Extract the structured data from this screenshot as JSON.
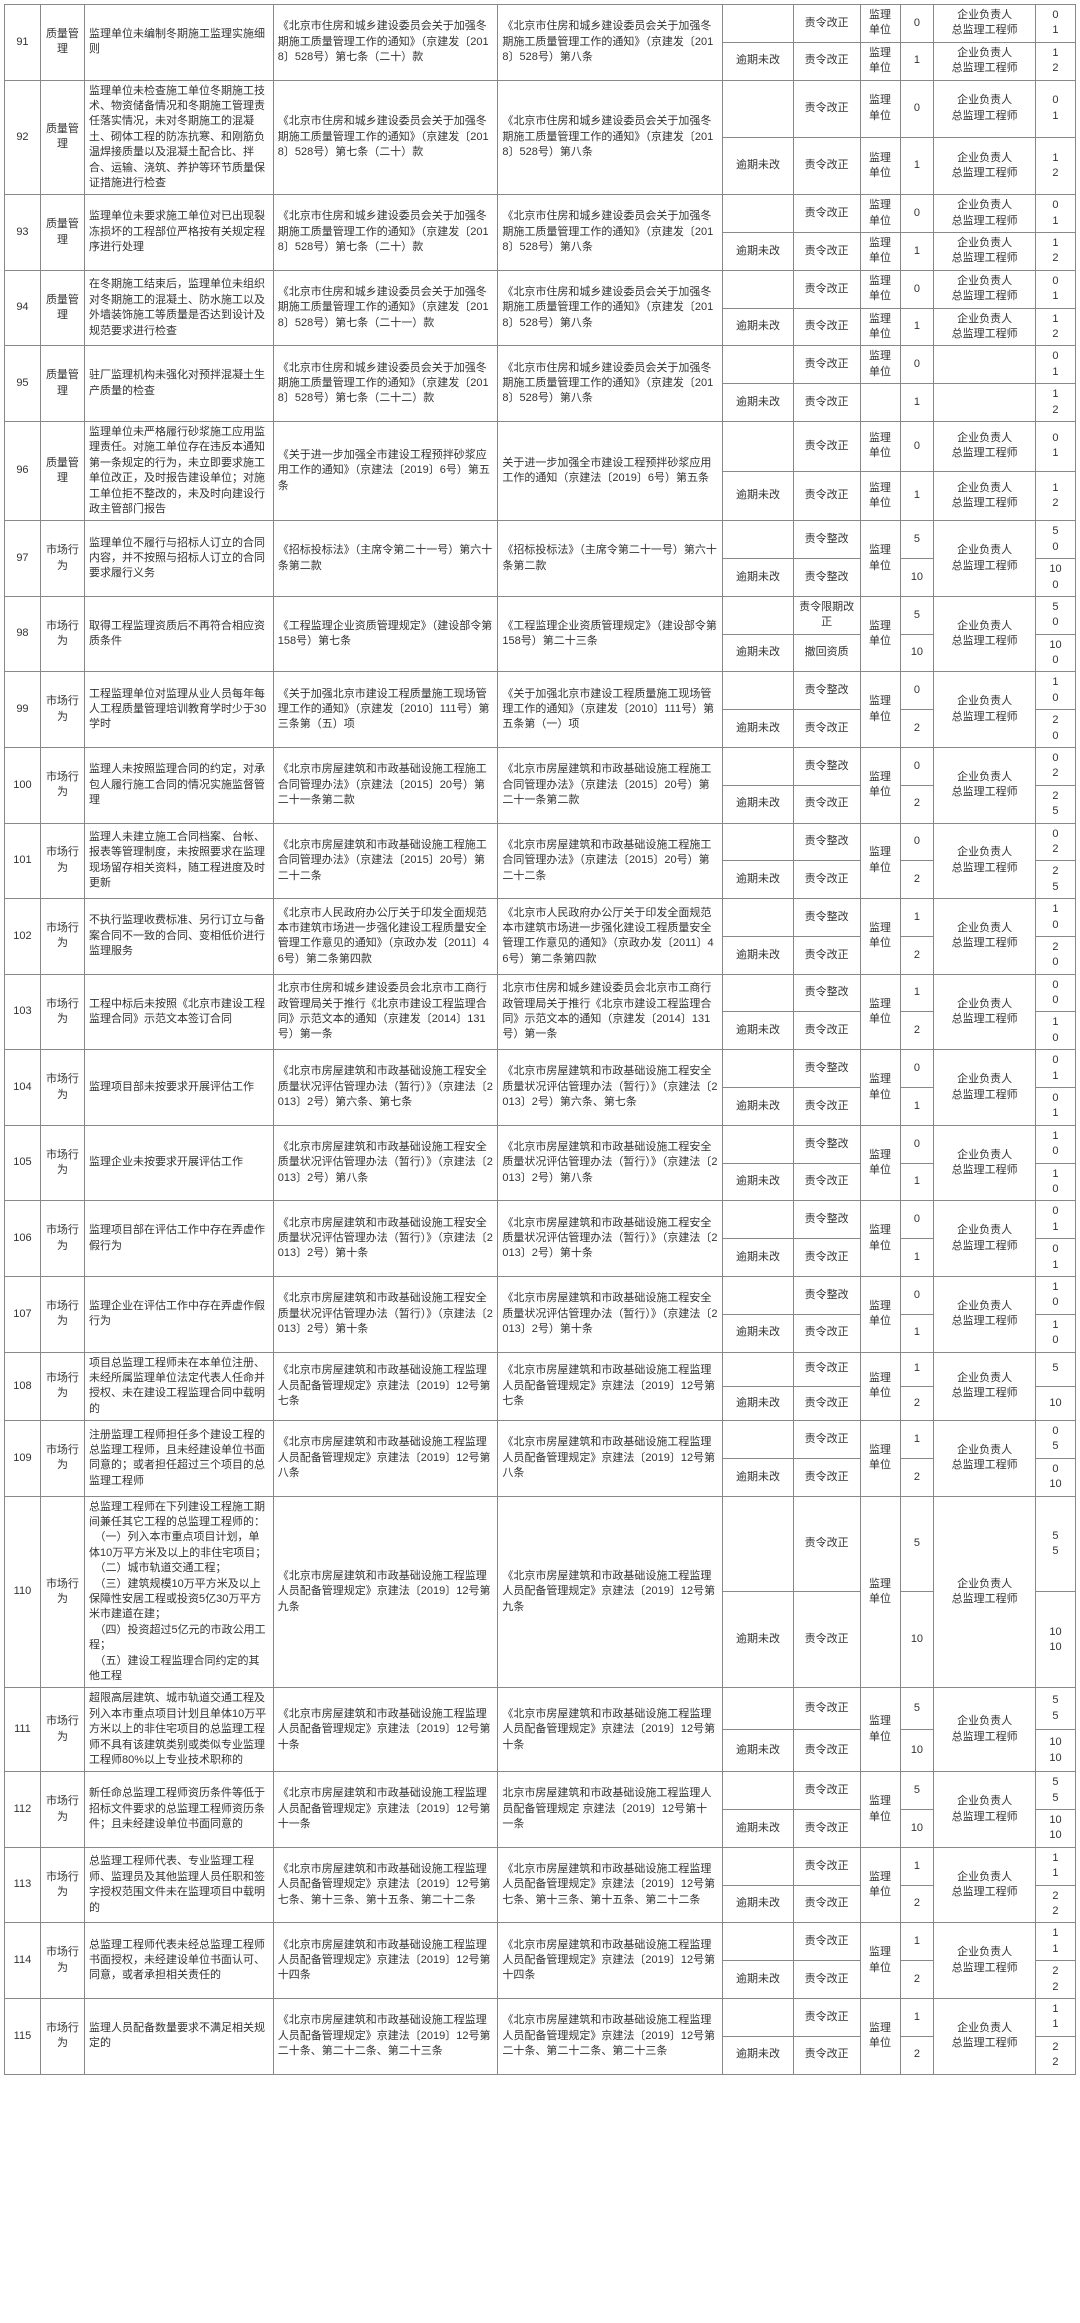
{
  "table": {
    "border_color": "#888888",
    "font_size": 11,
    "rows": [
      {
        "idx": "91",
        "cat": "质量管理",
        "desc": "监理单位未编制冬期施工监理实施细则",
        "reg1": "《北京市住房和城乡建设委员会关于加强冬期施工质量管理工作的通知》（京建发〔2018〕528号）第七条（二十）款",
        "reg2": "《北京市住房和城乡建设委员会关于加强冬期施工质量管理工作的通知》（京建发〔2018〕528号）第八条",
        "sub": [
          {
            "stat": "",
            "act": "责令改正",
            "unit": "监理单位",
            "pts": "0",
            "resp": "企业负责人\n总监理工程师",
            "nums": "0\n1"
          },
          {
            "stat": "逾期未改",
            "act": "责令改正",
            "unit": "监理单位",
            "pts": "1",
            "resp": "企业负责人\n总监理工程师",
            "nums": "1\n2"
          }
        ]
      },
      {
        "idx": "92",
        "cat": "质量管理",
        "desc": "监理单位未检查施工单位冬期施工技术、物资储备情况和冬期施工管理责任落实情况，未对冬期施工的混凝土、砌体工程的防冻抗寒、和刚筋负温焊接质量以及混凝土配合比、拌合、运输、浇筑、养护等环节质量保证措施进行检查",
        "reg1": "《北京市住房和城乡建设委员会关于加强冬期施工质量管理工作的通知》（京建发〔2018〕528号）第七条（二十）款",
        "reg2": "《北京市住房和城乡建设委员会关于加强冬期施工质量管理工作的通知》（京建发〔2018〕528号）第八条",
        "sub": [
          {
            "stat": "",
            "act": "责令改正",
            "unit": "监理单位",
            "pts": "0",
            "resp": "企业负责人\n总监理工程师",
            "nums": "0\n1"
          },
          {
            "stat": "逾期未改",
            "act": "责令改正",
            "unit": "监理单位",
            "pts": "1",
            "resp": "企业负责人\n总监理工程师",
            "nums": "1\n2"
          }
        ]
      },
      {
        "idx": "93",
        "cat": "质量管理",
        "desc": "监理单位未要求施工单位对已出现裂冻损坏的工程部位严格按有关规定程序进行处理",
        "reg1": "《北京市住房和城乡建设委员会关于加强冬期施工质量管理工作的通知》（京建发〔2018〕528号）第七条（二十）款",
        "reg2": "《北京市住房和城乡建设委员会关于加强冬期施工质量管理工作的通知》（京建发〔2018〕528号）第八条",
        "sub": [
          {
            "stat": "",
            "act": "责令改正",
            "unit": "监理单位",
            "pts": "0",
            "resp": "企业负责人\n总监理工程师",
            "nums": "0\n1"
          },
          {
            "stat": "逾期未改",
            "act": "责令改正",
            "unit": "监理单位",
            "pts": "1",
            "resp": "企业负责人\n总监理工程师",
            "nums": "1\n2"
          }
        ]
      },
      {
        "idx": "94",
        "cat": "质量管理",
        "desc": "在冬期施工结束后，监理单位未组织对冬期施工的混凝土、防水施工以及外墙装饰施工等质量是否达到设计及规范要求进行检查",
        "reg1": "《北京市住房和城乡建设委员会关于加强冬期施工质量管理工作的通知》（京建发〔2018〕528号）第七条（二十一）款",
        "reg2": "《北京市住房和城乡建设委员会关于加强冬期施工质量管理工作的通知》（京建发〔2018〕528号）第八条",
        "sub": [
          {
            "stat": "",
            "act": "责令改正",
            "unit": "监理单位",
            "pts": "0",
            "resp": "企业负责人\n总监理工程师",
            "nums": "0\n1"
          },
          {
            "stat": "逾期未改",
            "act": "责令改正",
            "unit": "监理单位",
            "pts": "1",
            "resp": "企业负责人\n总监理工程师",
            "nums": "1\n2"
          }
        ]
      },
      {
        "idx": "95",
        "cat": "质量管理",
        "desc": "驻厂监理机构未强化对预拌混凝土生产质量的检查",
        "reg1": "《北京市住房和城乡建设委员会关于加强冬期施工质量管理工作的通知》（京建发〔2018〕528号）第七条（二十二）款",
        "reg2": "《北京市住房和城乡建设委员会关于加强冬期施工质量管理工作的通知》（京建发〔2018〕528号）第八条",
        "simple_resp": true,
        "sub": [
          {
            "stat": "",
            "act": "责令改正",
            "unit": "监理单位",
            "pts": "0",
            "resp": "",
            "nums": "0\n1"
          },
          {
            "stat": "逾期未改",
            "act": "责令改正",
            "unit": "",
            "pts": "1",
            "resp": "",
            "nums": "1\n2"
          }
        ]
      },
      {
        "idx": "96",
        "cat": "质量管理",
        "desc": "监理单位未严格履行砂浆施工应用监理责任。对施工单位存在违反本通知第一条规定的行为，未立即要求施工单位改正，及时报告建设单位；对施工单位拒不整改的，未及时向建设行政主管部门报告",
        "reg1": "《关于进一步加强全市建设工程预拌砂浆应用工作的通知》（京建法〔2019〕6号）第五条",
        "reg2": "关于进一步加强全市建设工程预拌砂浆应用工作的通知（京建法〔2019〕6号）第五条",
        "sub": [
          {
            "stat": "",
            "act": "责令改正",
            "unit": "监理单位",
            "pts": "0",
            "resp": "企业负责人\n总监理工程师",
            "nums": "0\n1"
          },
          {
            "stat": "逾期未改",
            "act": "责令改正",
            "unit": "监理单位",
            "pts": "1",
            "resp": "企业负责人\n总监理工程师",
            "nums": "1\n2"
          }
        ]
      },
      {
        "idx": "97",
        "cat": "市场行为",
        "desc": "监理单位不履行与招标人订立的合同内容，并不按照与招标人订立的合同要求履行义务",
        "reg1": "《招标投标法》（主席令第二十一号）第六十条第二款",
        "reg2": "《招标投标法》（主席令第二十一号）第六十条第二款",
        "sub": [
          {
            "stat": "",
            "act": "责令整改",
            "unit": "监理单位",
            "pts": "5",
            "resp": "企业负责人\n总监理工程师",
            "nums": "5\n0"
          },
          {
            "stat": "逾期未改",
            "act": "责令整改",
            "unit": "",
            "pts": "10",
            "resp": "",
            "nums": "10\n0"
          }
        ],
        "merge_unit_resp": true
      },
      {
        "idx": "98",
        "cat": "市场行为",
        "desc": "取得工程监理资质后不再符合相应资质条件",
        "reg1": "《工程监理企业资质管理规定》（建设部令第　158号）第七条",
        "reg2": "《工程监理企业资质管理规定》（建设部令第　158号）第二十三条",
        "sub": [
          {
            "stat": "",
            "act": "责令限期改正",
            "unit": "监理单位",
            "pts": "5",
            "resp": "企业负责人\n总监理工程师",
            "nums": "5\n0"
          },
          {
            "stat": "逾期未改",
            "act": "撤回资质",
            "unit": "",
            "pts": "10",
            "resp": "",
            "nums": "10\n0"
          }
        ],
        "merge_unit_resp": true
      },
      {
        "idx": "99",
        "cat": "市场行为",
        "desc": "工程监理单位对监理从业人员每年每人工程质量管理培训教育学时少于30学时",
        "reg1": "《关于加强北京市建设工程质量施工现场管理工作的通知》（京建发〔2010〕111号）第三条第（五）项",
        "reg2": "《关于加强北京市建设工程质量施工现场管理工作的通知》（京建发〔2010〕111号）第五条第（一）项",
        "sub": [
          {
            "stat": "",
            "act": "责令整改",
            "unit": "监理单位",
            "pts": "0",
            "resp": "企业负责人\n总监理工程师",
            "nums": "1\n0"
          },
          {
            "stat": "逾期未改",
            "act": "责令改正",
            "unit": "",
            "pts": "2",
            "resp": "",
            "nums": "2\n0"
          }
        ],
        "merge_unit_resp": true
      },
      {
        "idx": "100",
        "cat": "市场行为",
        "desc": "监理人未按照监理合同的约定，对承包人履行施工合同的情况实施监督管理",
        "reg1": "《北京市房屋建筑和市政基础设施工程施工合同管理办法》（京建法〔2015〕20号）第二十一条第二款",
        "reg2": "《北京市房屋建筑和市政基础设施工程施工合同管理办法》（京建法〔2015〕20号）第二十一条第二款",
        "sub": [
          {
            "stat": "",
            "act": "责令整改",
            "unit": "监理单位",
            "pts": "0",
            "resp": "企业负责人\n总监理工程师",
            "nums": "0\n2"
          },
          {
            "stat": "逾期未改",
            "act": "责令改正",
            "unit": "",
            "pts": "2",
            "resp": "",
            "nums": "2\n5"
          }
        ],
        "merge_unit_resp": true
      },
      {
        "idx": "101",
        "cat": "市场行为",
        "desc": "监理人未建立施工合同档案、台帐、报表等管理制度，未按照要求在监理现场留存相关资料，随工程进度及时更新",
        "reg1": "《北京市房屋建筑和市政基础设施工程施工合同管理办法》（京建法〔2015〕20号）第二十二条",
        "reg2": "《北京市房屋建筑和市政基础设施工程施工合同管理办法》（京建法〔2015〕20号）第二十二条",
        "sub": [
          {
            "stat": "",
            "act": "责令整改",
            "unit": "监理单位",
            "pts": "0",
            "resp": "企业负责人\n总监理工程师",
            "nums": "0\n2"
          },
          {
            "stat": "逾期未改",
            "act": "责令改正",
            "unit": "",
            "pts": "2",
            "resp": "",
            "nums": "2\n5"
          }
        ],
        "merge_unit_resp": true
      },
      {
        "idx": "102",
        "cat": "市场行为",
        "desc": "不执行监理收费标准、另行订立与备案合同不一致的合同、变相低价进行监理服务",
        "reg1": "《北京市人民政府办公厅关于印发全面规范本市建筑市场进一步强化建设工程质量安全管理工作意见的通知》（京政办发〔2011〕46号）第二条第四款",
        "reg2": "《北京市人民政府办公厅关于印发全面规范本市建筑市场进一步强化建设工程质量安全管理工作意见的通知》（京政办发〔2011〕46号）第二条第四款",
        "sub": [
          {
            "stat": "",
            "act": "责令整改",
            "unit": "监理单位",
            "pts": "1",
            "resp": "企业负责人\n总监理工程师",
            "nums": "1\n0"
          },
          {
            "stat": "逾期未改",
            "act": "责令改正",
            "unit": "",
            "pts": "2",
            "resp": "",
            "nums": "2\n0"
          }
        ],
        "merge_unit_resp": true
      },
      {
        "idx": "103",
        "cat": "市场行为",
        "desc": "工程中标后未按照《北京市建设工程监理合同》示范文本签订合同",
        "reg1": "北京市住房和城乡建设委员会北京市工商行政管理局关于推行《北京市建设工程监理合同》示范文本的通知（京建发〔2014〕131号）第一条",
        "reg2": "北京市住房和城乡建设委员会北京市工商行政管理局关于推行《北京市建设工程监理合同》示范文本的通知（京建发〔2014〕131号）第一条",
        "sub": [
          {
            "stat": "",
            "act": "责令整改",
            "unit": "监理单位",
            "pts": "1",
            "resp": "企业负责人\n总监理工程师",
            "nums": "0\n0"
          },
          {
            "stat": "逾期未改",
            "act": "责令改正",
            "unit": "",
            "pts": "2",
            "resp": "",
            "nums": "1\n0"
          }
        ],
        "merge_unit_resp": true
      },
      {
        "idx": "104",
        "cat": "市场行为",
        "desc": "监理项目部未按要求开展评估工作",
        "reg1": "《北京市房屋建筑和市政基础设施工程安全质量状况评估管理办法（暂行）》（京建法〔2013〕2号）第六条、第七条",
        "reg2": "《北京市房屋建筑和市政基础设施工程安全质量状况评估管理办法（暂行）》（京建法〔2013〕2号）第六条、第七条",
        "sub": [
          {
            "stat": "",
            "act": "责令整改",
            "unit": "监理单位",
            "pts": "0",
            "resp": "企业负责人\n总监理工程师",
            "nums": "0\n1"
          },
          {
            "stat": "逾期未改",
            "act": "责令改正",
            "unit": "",
            "pts": "1",
            "resp": "",
            "nums": "0\n1"
          }
        ],
        "merge_unit_resp": true
      },
      {
        "idx": "105",
        "cat": "市场行为",
        "desc": "监理企业未按要求开展评估工作",
        "reg1": "《北京市房屋建筑和市政基础设施工程安全质量状况评估管理办法（暂行）》（京建法〔2013〕2号）第八条",
        "reg2": "《北京市房屋建筑和市政基础设施工程安全质量状况评估管理办法（暂行）》（京建法〔2013〕2号）第八条",
        "sub": [
          {
            "stat": "",
            "act": "责令整改",
            "unit": "监理单位",
            "pts": "0",
            "resp": "企业负责人\n总监理工程师",
            "nums": "1\n0"
          },
          {
            "stat": "逾期未改",
            "act": "责令改正",
            "unit": "",
            "pts": "1",
            "resp": "",
            "nums": "1\n0"
          }
        ],
        "merge_unit_resp": true
      },
      {
        "idx": "106",
        "cat": "市场行为",
        "desc": "监理项目部在评估工作中存在弄虚作假行为",
        "reg1": "《北京市房屋建筑和市政基础设施工程安全质量状况评估管理办法（暂行）》（京建法〔2013〕2号）第十条",
        "reg2": "《北京市房屋建筑和市政基础设施工程安全质量状况评估管理办法（暂行）》（京建法〔2013〕2号）第十条",
        "sub": [
          {
            "stat": "",
            "act": "责令整改",
            "unit": "监理单位",
            "pts": "0",
            "resp": "企业负责人\n总监理工程师",
            "nums": "0\n1"
          },
          {
            "stat": "逾期未改",
            "act": "责令改正",
            "unit": "",
            "pts": "1",
            "resp": "",
            "nums": "0\n1"
          }
        ],
        "merge_unit_resp": true
      },
      {
        "idx": "107",
        "cat": "市场行为",
        "desc": "监理企业在评估工作中存在弄虚作假行为",
        "reg1": "《北京市房屋建筑和市政基础设施工程安全质量状况评估管理办法（暂行）》（京建法〔2013〕2号）第十条",
        "reg2": "《北京市房屋建筑和市政基础设施工程安全质量状况评估管理办法（暂行）》（京建法〔2013〕2号）第十条",
        "sub": [
          {
            "stat": "",
            "act": "责令整改",
            "unit": "监理单位",
            "pts": "0",
            "resp": "企业负责人\n总监理工程师",
            "nums": "1\n0"
          },
          {
            "stat": "逾期未改",
            "act": "责令改正",
            "unit": "",
            "pts": "1",
            "resp": "",
            "nums": "1\n0"
          }
        ],
        "merge_unit_resp": true
      },
      {
        "idx": "108",
        "cat": "市场行为",
        "desc": "项目总监理工程师未在本单位注册、未经所属监理单位法定代表人任命并授权、未在建设工程监理合同中载明的",
        "reg1": "《北京市房屋建筑和市政基础设施工程监理人员配备管理规定》京建法〔2019〕12号第七条",
        "reg2": "《北京市房屋建筑和市政基础设施工程监理人员配备管理规定》京建法〔2019〕12号第七条",
        "sub": [
          {
            "stat": "",
            "act": "责令改正",
            "unit": "监理单位",
            "pts": "1",
            "resp": "企业负责人\n总监理工程师",
            "nums": "5"
          },
          {
            "stat": "逾期未改",
            "act": "责令改正",
            "unit": "",
            "pts": "2",
            "resp": "",
            "nums": "10"
          }
        ],
        "merge_unit_resp": true
      },
      {
        "idx": "109",
        "cat": "市场行为",
        "desc": "注册监理工程师担任多个建设工程的总监理工程师，且未经建设单位书面同意的；或者担任超过三个项目的总监理工程师",
        "reg1": "《北京市房屋建筑和市政基础设施工程监理人员配备管理规定》京建法〔2019〕12号第八条",
        "reg2": "《北京市房屋建筑和市政基础设施工程监理人员配备管理规定》京建法〔2019〕12号第八条",
        "sub": [
          {
            "stat": "",
            "act": "责令改正",
            "unit": "监理单位",
            "pts": "1",
            "resp": "企业负责人\n总监理工程师",
            "nums": "0\n5"
          },
          {
            "stat": "逾期未改",
            "act": "责令改正",
            "unit": "",
            "pts": "2",
            "resp": "",
            "nums": "0\n10"
          }
        ],
        "merge_unit_resp": true
      },
      {
        "idx": "110",
        "cat": "市场行为",
        "desc": "总监理工程师在下列建设工程施工期间兼任其它工程的总监理工程师的：\n　（一）列入本市重点项目计划，单体10万平方米及以上的非住宅项目；\n　（二）城市轨道交通工程；\n　（三）建筑规模10万平方米及以上保障性安居工程或投资5亿30万平方米市建道在建；\n　（四）投资超过5亿元的市政公用工程；\n　（五）建设工程监理合同约定的其他工程",
        "reg1": "《北京市房屋建筑和市政基础设施工程监理人员配备管理规定》京建法〔2019〕12号第九条",
        "reg2": "《北京市房屋建筑和市政基础设施工程监理人员配备管理规定》京建法〔2019〕12号第九条",
        "sub": [
          {
            "stat": "",
            "act": "责令改正",
            "unit": "监理单位",
            "pts": "5",
            "resp": "企业负责人\n总监理工程师",
            "nums": "5\n5"
          },
          {
            "stat": "逾期未改",
            "act": "责令改正",
            "unit": "",
            "pts": "10",
            "resp": "",
            "nums": "10\n10"
          }
        ],
        "merge_unit_resp": true
      },
      {
        "idx": "111",
        "cat": "市场行为",
        "desc": "超限高层建筑、城市轨道交通工程及列入本市重点项目计划且单体10万平方米以上的非住宅项目的总监理工程师不具有该建筑类别或类似专业监理工程师80%以上专业技术职称的",
        "reg1": "《北京市房屋建筑和市政基础设施工程监理人员配备管理规定》京建法〔2019〕12号第十条",
        "reg2": "《北京市房屋建筑和市政基础设施工程监理人员配备管理规定》京建法〔2019〕12号第十条",
        "sub": [
          {
            "stat": "",
            "act": "责令改正",
            "unit": "监理单位",
            "pts": "5",
            "resp": "企业负责人\n总监理工程师",
            "nums": "5\n5"
          },
          {
            "stat": "逾期未改",
            "act": "责令改正",
            "unit": "",
            "pts": "10",
            "resp": "",
            "nums": "10\n10"
          }
        ],
        "merge_unit_resp": true
      },
      {
        "idx": "112",
        "cat": "市场行为",
        "desc": "新任命总监理工程师资历条件等低于招标文件要求的总监理工程师资历条件；且未经建设单位书面同意的",
        "reg1": "《北京市房屋建筑和市政基础设施工程监理人员配备管理规定》京建法〔2019〕12号第十一条",
        "reg2": "北京市房屋建筑和市政基础设施工程监理人员配备管理规定 京建法〔2019〕12号第十一条",
        "sub": [
          {
            "stat": "",
            "act": "责令改正",
            "unit": "监理单位",
            "pts": "5",
            "resp": "企业负责人\n总监理工程师",
            "nums": "5\n5"
          },
          {
            "stat": "逾期未改",
            "act": "责令改正",
            "unit": "",
            "pts": "10",
            "resp": "",
            "nums": "10\n10"
          }
        ],
        "merge_unit_resp": true
      },
      {
        "idx": "113",
        "cat": "市场行为",
        "desc": "总监理工程师代表、专业监理工程师、监理员及其他监理人员任职和签字授权范围文件未在监理项目中载明的",
        "reg1": "《北京市房屋建筑和市政基础设施工程监理人员配备管理规定》京建法〔2019〕12号第七条、第十三条、第十五条、第二十二条",
        "reg2": "《北京市房屋建筑和市政基础设施工程监理人员配备管理规定》京建法〔2019〕12号第七条、第十三条、第十五条、第二十二条",
        "sub": [
          {
            "stat": "",
            "act": "责令改正",
            "unit": "监理单位",
            "pts": "1",
            "resp": "企业负责人\n总监理工程师",
            "nums": "1\n1"
          },
          {
            "stat": "逾期未改",
            "act": "责令改正",
            "unit": "",
            "pts": "2",
            "resp": "",
            "nums": "2\n2"
          }
        ],
        "merge_unit_resp": true
      },
      {
        "idx": "114",
        "cat": "市场行为",
        "desc": "总监理工程师代表未经总监理工程师书面授权，未经建设单位书面认可、同意，或者承担相关责任的",
        "reg1": "《北京市房屋建筑和市政基础设施工程监理人员配备管理规定》京建法〔2019〕12号第十四条",
        "reg2": "《北京市房屋建筑和市政基础设施工程监理人员配备管理规定》京建法〔2019〕12号第十四条",
        "sub": [
          {
            "stat": "",
            "act": "责令改正",
            "unit": "监理单位",
            "pts": "1",
            "resp": "企业负责人\n总监理工程师",
            "nums": "1\n1"
          },
          {
            "stat": "逾期未改",
            "act": "责令改正",
            "unit": "",
            "pts": "2",
            "resp": "",
            "nums": "2\n2"
          }
        ],
        "merge_unit_resp": true
      },
      {
        "idx": "115",
        "cat": "市场行为",
        "desc": "监理人员配备数量要求不满足相关规定的",
        "reg1": "《北京市房屋建筑和市政基础设施工程监理人员配备管理规定》京建法〔2019〕12号第二十条、第二十二条、第二十三条",
        "reg2": "《北京市房屋建筑和市政基础设施工程监理人员配备管理规定》京建法〔2019〕12号第二十条、第二十二条、第二十三条",
        "sub": [
          {
            "stat": "",
            "act": "责令改正",
            "unit": "监理单位",
            "pts": "1",
            "resp": "企业负责人\n总监理工程师",
            "nums": "1\n1"
          },
          {
            "stat": "逾期未改",
            "act": "责令改正",
            "unit": "",
            "pts": "2",
            "resp": "",
            "nums": "2\n2"
          }
        ],
        "merge_unit_resp": true
      }
    ]
  }
}
